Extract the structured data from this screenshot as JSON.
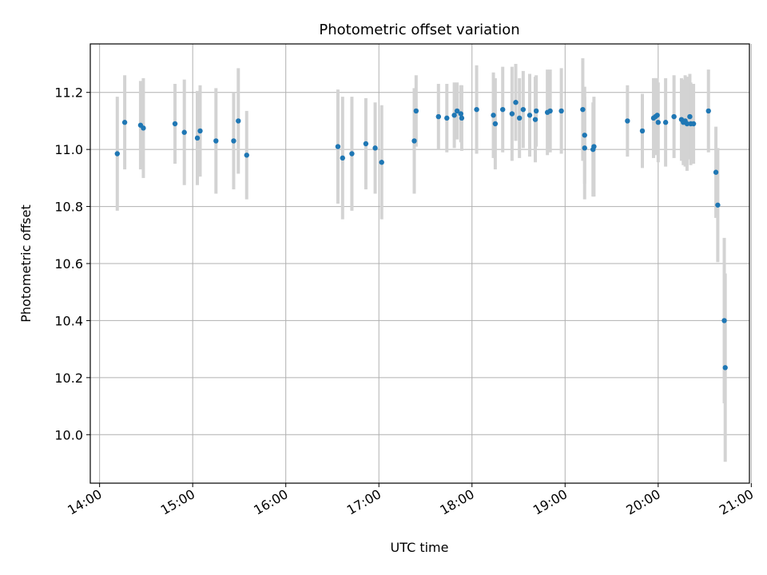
{
  "chart_data": {
    "type": "scatter",
    "title": "Photometric offset variation",
    "xlabel": "UTC time",
    "ylabel": "Photometric offset",
    "grid": true,
    "xlim_hours": [
      13.9,
      20.98
    ],
    "ylim": [
      9.83,
      11.37
    ],
    "x_ticks": [
      {
        "value": 14,
        "label": "14:00"
      },
      {
        "value": 15,
        "label": "15:00"
      },
      {
        "value": 16,
        "label": "16:00"
      },
      {
        "value": 17,
        "label": "17:00"
      },
      {
        "value": 18,
        "label": "18:00"
      },
      {
        "value": 19,
        "label": "19:00"
      },
      {
        "value": 20,
        "label": "20:00"
      },
      {
        "value": 21,
        "label": "21:00"
      }
    ],
    "y_ticks": [
      {
        "value": 10.0,
        "label": "10.0"
      },
      {
        "value": 10.2,
        "label": "10.2"
      },
      {
        "value": 10.4,
        "label": "10.4"
      },
      {
        "value": 10.6,
        "label": "10.6"
      },
      {
        "value": 10.8,
        "label": "10.8"
      },
      {
        "value": 11.0,
        "label": "11.0"
      },
      {
        "value": 11.2,
        "label": "11.2"
      }
    ],
    "colors": {
      "point": "#1f77b4",
      "errorbar": "#d3d3d3",
      "grid": "#b0b0b0",
      "axis": "#000000"
    },
    "series": [
      {
        "name": "offset",
        "x": [
          14.19,
          14.27,
          14.44,
          14.47,
          14.81,
          14.91,
          15.05,
          15.08,
          15.25,
          15.44,
          15.49,
          15.58,
          16.56,
          16.61,
          16.71,
          16.86,
          16.96,
          17.03,
          17.38,
          17.4,
          17.64,
          17.73,
          17.81,
          17.84,
          17.88,
          17.89,
          18.05,
          18.23,
          18.25,
          18.33,
          18.43,
          18.47,
          18.51,
          18.55,
          18.62,
          18.68,
          18.69,
          18.81,
          18.84,
          18.96,
          19.19,
          19.21,
          19.21,
          19.3,
          19.31,
          19.67,
          19.83,
          19.95,
          19.97,
          19.99,
          20.0,
          20.08,
          20.17,
          20.25,
          20.27,
          20.29,
          20.31,
          20.34,
          20.35,
          20.38,
          20.54,
          20.62,
          20.64,
          20.71,
          20.72
        ],
        "y": [
          10.985,
          11.095,
          11.085,
          11.075,
          11.09,
          11.06,
          11.04,
          11.065,
          11.03,
          11.03,
          11.1,
          10.98,
          11.01,
          10.97,
          10.985,
          11.02,
          11.005,
          10.955,
          11.03,
          11.135,
          11.115,
          11.11,
          11.12,
          11.135,
          11.125,
          11.11,
          11.14,
          11.12,
          11.09,
          11.14,
          11.125,
          11.165,
          11.11,
          11.14,
          11.12,
          11.105,
          11.135,
          11.13,
          11.135,
          11.135,
          11.14,
          11.05,
          11.005,
          11.0,
          11.01,
          11.1,
          11.065,
          11.11,
          11.115,
          11.12,
          11.095,
          11.095,
          11.115,
          11.105,
          11.095,
          11.1,
          11.09,
          11.115,
          11.09,
          11.09,
          11.135,
          10.92,
          10.805,
          10.4,
          10.235
        ],
        "yerr": [
          0.2,
          0.165,
          0.155,
          0.175,
          0.14,
          0.185,
          0.165,
          0.16,
          0.185,
          0.17,
          0.185,
          0.155,
          0.2,
          0.215,
          0.2,
          0.16,
          0.16,
          0.2,
          0.185,
          0.125,
          0.115,
          0.12,
          0.115,
          0.1,
          0.1,
          0.115,
          0.155,
          0.15,
          0.16,
          0.15,
          0.165,
          0.135,
          0.14,
          0.135,
          0.145,
          0.15,
          0.125,
          0.15,
          0.145,
          0.15,
          0.18,
          0.17,
          0.18,
          0.165,
          0.175,
          0.125,
          0.13,
          0.14,
          0.135,
          0.13,
          0.14,
          0.155,
          0.145,
          0.145,
          0.15,
          0.16,
          0.165,
          0.15,
          0.145,
          0.14,
          0.145,
          0.16,
          0.2,
          0.29,
          0.33
        ]
      }
    ]
  }
}
